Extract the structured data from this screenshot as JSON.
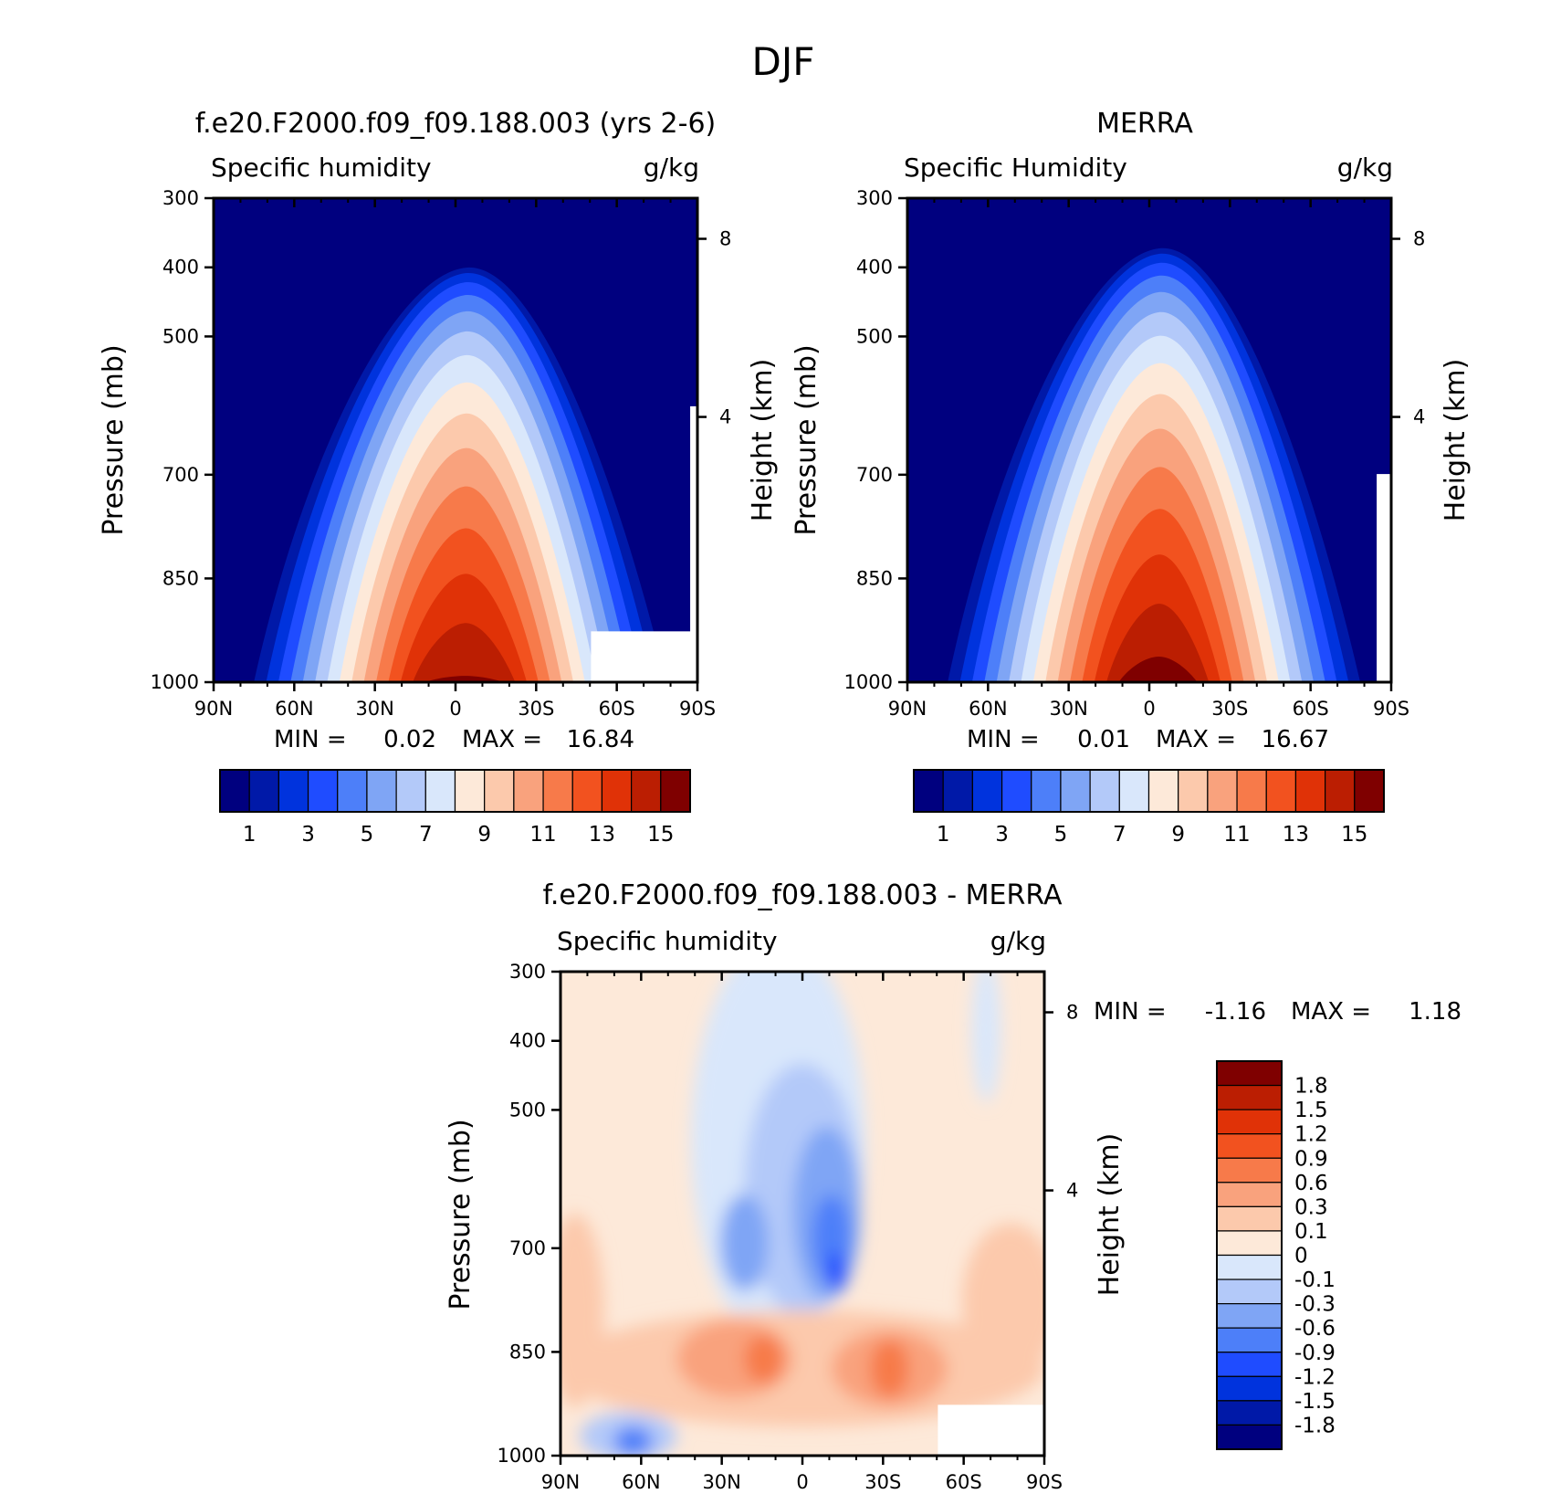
{
  "figure": {
    "title": "DJF"
  },
  "colors": {
    "abs_palette": [
      "#00007f",
      "#0019a8",
      "#0033dd",
      "#1f4cff",
      "#4d7ff9",
      "#7fa5f5",
      "#b3c9f9",
      "#d9e7fb",
      "#fde9d9",
      "#fcc9ac",
      "#f9a27d",
      "#f77a4a",
      "#f2521f",
      "#e03207",
      "#bb1e02",
      "#7f0000"
    ],
    "diff_palette": [
      "#00007f",
      "#0019a8",
      "#0033dd",
      "#1f4cff",
      "#4d7ff9",
      "#7fa5f5",
      "#b3c9f9",
      "#d9e7fb",
      "#fde9d9",
      "#fcc9ac",
      "#f9a27d",
      "#f77a4a",
      "#f2521f",
      "#e03207",
      "#bb1e02",
      "#7f0000"
    ]
  },
  "chart_data": [
    {
      "type": "heatmap",
      "title": "f.e20.F2000.f09_f09.188.003 (yrs 2-6)",
      "left_label": "Specific humidity",
      "right_label": "g/kg",
      "ylabel": "Pressure (mb)",
      "ylabel_right": "Height (km)",
      "x_ticks": [
        "90N",
        "60N",
        "30N",
        "0",
        "30S",
        "60S",
        "90S"
      ],
      "y_ticks": [
        "300",
        "400",
        "500",
        "700",
        "850",
        "1000"
      ],
      "y_right_ticks": [
        "8",
        "4"
      ],
      "ylim": [
        1000,
        300
      ],
      "min_label": "MIN =",
      "min_value": "0.02",
      "max_label": "MAX =",
      "max_value": "16.84",
      "colorbar_levels": [
        "1",
        "3",
        "5",
        "7",
        "9",
        "11",
        "13",
        "15"
      ],
      "peak_value": 16.84
    },
    {
      "type": "heatmap",
      "title": "MERRA",
      "left_label": "Specific Humidity",
      "right_label": "g/kg",
      "ylabel": "Pressure (mb)",
      "ylabel_right": "Height (km)",
      "x_ticks": [
        "90N",
        "60N",
        "30N",
        "0",
        "30S",
        "60S",
        "90S"
      ],
      "y_ticks": [
        "300",
        "400",
        "500",
        "700",
        "850",
        "1000"
      ],
      "y_right_ticks": [
        "8",
        "4"
      ],
      "ylim": [
        1000,
        300
      ],
      "min_label": "MIN =",
      "min_value": "0.01",
      "max_label": "MAX =",
      "max_value": "16.67",
      "colorbar_levels": [
        "1",
        "3",
        "5",
        "7",
        "9",
        "11",
        "13",
        "15"
      ],
      "peak_value": 16.67
    },
    {
      "type": "heatmap",
      "title": "f.e20.F2000.f09_f09.188.003 - MERRA",
      "left_label": "Specific humidity",
      "right_label": "g/kg",
      "ylabel": "Pressure (mb)",
      "ylabel_right": "Height (km)",
      "x_ticks": [
        "90N",
        "60N",
        "30N",
        "0",
        "30S",
        "60S",
        "90S"
      ],
      "y_ticks": [
        "300",
        "400",
        "500",
        "700",
        "850",
        "1000"
      ],
      "y_right_ticks": [
        "8",
        "4"
      ],
      "ylim": [
        1000,
        300
      ],
      "min_label": "MIN =",
      "min_value": "-1.16",
      "max_label": "MAX =",
      "max_value": "1.18",
      "colorbar_levels": [
        "1.8",
        "1.5",
        "1.2",
        "0.9",
        "0.6",
        "0.3",
        "0.1",
        "0",
        "-0.1",
        "-0.3",
        "-0.6",
        "-0.9",
        "-1.2",
        "-1.5",
        "-1.8"
      ]
    }
  ]
}
